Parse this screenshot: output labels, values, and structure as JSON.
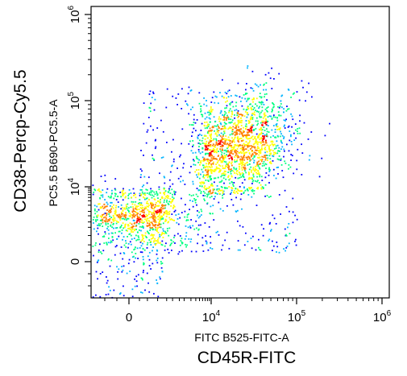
{
  "chart_data": {
    "type": "scatter",
    "title": "",
    "subtitle": "",
    "density_colored": true,
    "grid": false,
    "legend": "none",
    "x_axis": {
      "instrument_label": "FITC B525-FITC-A",
      "marker_label": "CD45R-FITC",
      "scale": "biexponential",
      "range": [
        -300,
        1000000
      ],
      "ticks": [
        {
          "value": 0,
          "label": "0"
        },
        {
          "value": 10000,
          "label": "10",
          "exponent": "4"
        },
        {
          "value": 100000,
          "label": "10",
          "exponent": "5"
        },
        {
          "value": 1000000,
          "label": "10",
          "exponent": "6"
        }
      ]
    },
    "y_axis": {
      "instrument_label": "PC5.5 B690-PC5.5-A",
      "marker_label": "CD38-Percp-Cy5.5",
      "scale": "biexponential",
      "range": [
        -300,
        1000000
      ],
      "ticks": [
        {
          "value": 0,
          "label": "0"
        },
        {
          "value": 10000,
          "label": "10",
          "exponent": "4"
        },
        {
          "value": 100000,
          "label": "10",
          "exponent": "5"
        },
        {
          "value": 1000000,
          "label": "10",
          "exponent": "6"
        }
      ]
    },
    "populations": [
      {
        "center": [
          0,
          0
        ],
        "spread": [
          300,
          1500
        ],
        "share": 0.3
      },
      {
        "center": [
          0,
          3000
        ],
        "spread": [
          500,
          4000
        ],
        "share": 0.12
      },
      {
        "center": [
          20000,
          30000
        ],
        "spread": [
          15000,
          25000
        ],
        "share": 0.45
      },
      {
        "center": [
          5000,
          5000
        ],
        "spread": [
          5000,
          5000
        ],
        "share": 0.13
      }
    ],
    "density_colors": [
      "#0000ff",
      "#00b4ff",
      "#00ff80",
      "#ffff00",
      "#ff8000",
      "#ff0000"
    ]
  }
}
